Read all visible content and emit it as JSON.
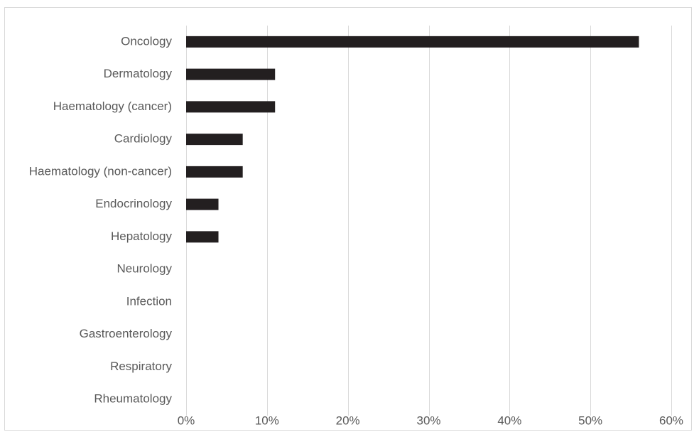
{
  "chart_data": {
    "type": "bar",
    "orientation": "horizontal",
    "categories": [
      "Oncology",
      "Dermatology",
      "Haematology (cancer)",
      "Cardiology",
      "Haematology (non-cancer)",
      "Endocrinology",
      "Hepatology",
      "Neurology",
      "Infection",
      "Gastroenterology",
      "Respiratory",
      "Rheumatology"
    ],
    "values": [
      56,
      11,
      11,
      7,
      7,
      4,
      4,
      0,
      0,
      0,
      0,
      0
    ],
    "value_unit": "%",
    "xlim": [
      0,
      60
    ],
    "xticks": [
      "0%",
      "10%",
      "20%",
      "30%",
      "40%",
      "50%",
      "60%"
    ],
    "title": "",
    "xlabel": "",
    "ylabel": "",
    "grid": "vertical",
    "legend": "none",
    "bar_color": "#231f20",
    "grid_color": "#d9d9d9",
    "text_color": "#595959"
  }
}
